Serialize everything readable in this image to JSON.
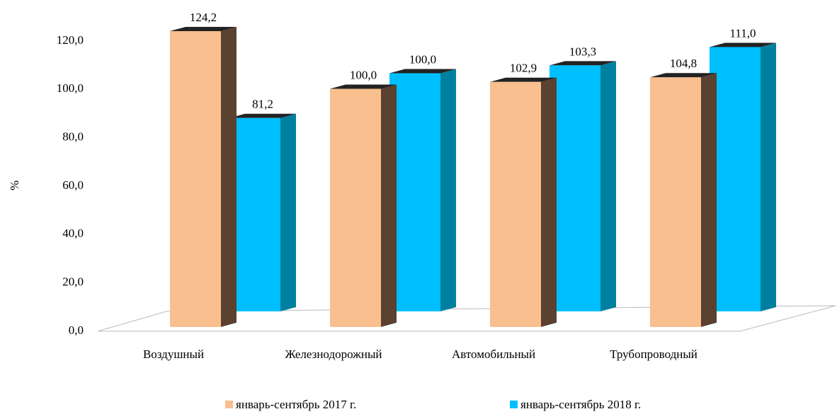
{
  "chart_data": {
    "type": "bar3d",
    "y_label": "%",
    "categories": [
      "Воздушный",
      "Железнодорожный",
      "Автомобильный",
      "Трубопроводный"
    ],
    "series": [
      {
        "name": "январь-сентябрь 2017 г.",
        "color": "#f9bf8f",
        "side_color": "#5a4130",
        "values": [
          124.2,
          100.0,
          102.9,
          104.8
        ],
        "value_labels": [
          "124,2",
          "100,0",
          "102,9",
          "104,8"
        ]
      },
      {
        "name": "январь-сентябрь 2018 г.",
        "color": "#00bfff",
        "side_color": "#00809f",
        "values": [
          81.2,
          100.0,
          103.3,
          111.0
        ],
        "value_labels": [
          "81,2",
          "100,0",
          "103,3",
          "111,0"
        ]
      }
    ],
    "ylim": [
      0,
      120
    ],
    "yticks": [
      {
        "value": 0,
        "label": "0,0"
      },
      {
        "value": 20,
        "label": "20,0"
      },
      {
        "value": 40,
        "label": "40,0"
      },
      {
        "value": 60,
        "label": "60,0"
      },
      {
        "value": 80,
        "label": "80,0"
      },
      {
        "value": 100,
        "label": "100,0"
      },
      {
        "value": 120,
        "label": "120,0"
      }
    ]
  }
}
